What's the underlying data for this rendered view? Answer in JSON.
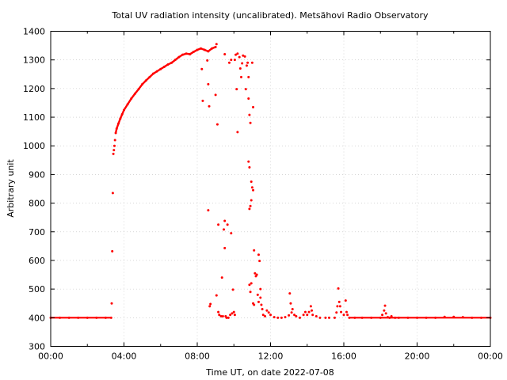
{
  "chart_data": {
    "type": "scatter",
    "title": "Total UV radiation intensity (uncalibrated). Metsähovi Radio Observatory",
    "xlabel": "Time UT, on date 2022-07-08",
    "ylabel": "Arbitrary unit",
    "xlim": [
      "00:00",
      "24:00"
    ],
    "ylim": [
      300,
      1400
    ],
    "x_ticks": [
      "00:00",
      "04:00",
      "08:00",
      "12:00",
      "16:00",
      "20:00",
      "00:00"
    ],
    "y_ticks": [
      300,
      400,
      500,
      600,
      700,
      800,
      900,
      1000,
      1100,
      1200,
      1300,
      1400
    ],
    "grid": true,
    "marker_color": "#ff0000",
    "series": [
      {
        "x_unit": "hours UT",
        "points": [
          [
            0.0,
            400
          ],
          [
            0.5,
            400
          ],
          [
            1.0,
            400
          ],
          [
            1.5,
            400
          ],
          [
            2.0,
            400
          ],
          [
            2.5,
            400
          ],
          [
            3.0,
            400
          ],
          [
            3.3,
            400
          ],
          [
            3.33,
            450
          ],
          [
            3.36,
            632
          ],
          [
            3.39,
            835
          ],
          [
            3.42,
            972
          ],
          [
            3.45,
            985
          ],
          [
            3.48,
            1000
          ],
          [
            3.51,
            1020
          ],
          [
            3.55,
            1045
          ],
          [
            3.6,
            1060
          ],
          [
            3.7,
            1078
          ],
          [
            3.8,
            1095
          ],
          [
            3.9,
            1110
          ],
          [
            4.0,
            1125
          ],
          [
            4.2,
            1145
          ],
          [
            4.4,
            1165
          ],
          [
            4.6,
            1182
          ],
          [
            4.8,
            1198
          ],
          [
            5.0,
            1215
          ],
          [
            5.2,
            1228
          ],
          [
            5.4,
            1240
          ],
          [
            5.6,
            1252
          ],
          [
            5.8,
            1260
          ],
          [
            6.0,
            1268
          ],
          [
            6.2,
            1276
          ],
          [
            6.4,
            1284
          ],
          [
            6.6,
            1290
          ],
          [
            6.8,
            1300
          ],
          [
            7.0,
            1310
          ],
          [
            7.2,
            1318
          ],
          [
            7.4,
            1322
          ],
          [
            7.6,
            1320
          ],
          [
            7.8,
            1328
          ],
          [
            8.0,
            1335
          ],
          [
            8.2,
            1340
          ],
          [
            8.4,
            1335
          ],
          [
            8.6,
            1330
          ],
          [
            8.8,
            1340
          ],
          [
            9.0,
            1345
          ],
          [
            9.05,
            1355
          ],
          [
            8.25,
            1268
          ],
          [
            8.3,
            1157
          ],
          [
            8.55,
            1298
          ],
          [
            8.6,
            1215
          ],
          [
            8.65,
            1138
          ],
          [
            8.6,
            775
          ],
          [
            8.68,
            440
          ],
          [
            8.72,
            448
          ],
          [
            9.0,
            1178
          ],
          [
            9.05,
            478
          ],
          [
            9.1,
            1075
          ],
          [
            9.15,
            725
          ],
          [
            9.15,
            420
          ],
          [
            9.2,
            410
          ],
          [
            9.3,
            405
          ],
          [
            9.35,
            540
          ],
          [
            9.4,
            405
          ],
          [
            9.45,
            708
          ],
          [
            9.5,
            643
          ],
          [
            9.5,
            738
          ],
          [
            9.55,
            405
          ],
          [
            9.6,
            400
          ],
          [
            9.65,
            725
          ],
          [
            9.7,
            400
          ],
          [
            9.75,
            1290
          ],
          [
            9.8,
            410
          ],
          [
            9.85,
            695
          ],
          [
            9.9,
            415
          ],
          [
            9.95,
            498
          ],
          [
            10.0,
            420
          ],
          [
            10.05,
            410
          ],
          [
            9.5,
            1320
          ],
          [
            9.85,
            1300
          ],
          [
            10.05,
            1300
          ],
          [
            10.1,
            1318
          ],
          [
            10.15,
            1198
          ],
          [
            10.2,
            1048
          ],
          [
            10.2,
            1322
          ],
          [
            10.3,
            1310
          ],
          [
            10.35,
            1270
          ],
          [
            10.4,
            1240
          ],
          [
            10.45,
            1288
          ],
          [
            10.5,
            1315
          ],
          [
            10.6,
            1312
          ],
          [
            10.65,
            1198
          ],
          [
            10.7,
            1280
          ],
          [
            10.75,
            1290
          ],
          [
            10.8,
            1240
          ],
          [
            10.8,
            1165
          ],
          [
            10.85,
            1108
          ],
          [
            10.9,
            1080
          ],
          [
            10.8,
            945
          ],
          [
            10.85,
            925
          ],
          [
            10.95,
            875
          ],
          [
            10.95,
            810
          ],
          [
            11.0,
            855
          ],
          [
            11.05,
            845
          ],
          [
            11.05,
            1135
          ],
          [
            11.0,
            1290
          ],
          [
            10.9,
            790
          ],
          [
            10.85,
            780
          ],
          [
            10.85,
            515
          ],
          [
            10.9,
            490
          ],
          [
            10.95,
            520
          ],
          [
            11.05,
            450
          ],
          [
            11.1,
            445
          ],
          [
            11.1,
            635
          ],
          [
            11.15,
            555
          ],
          [
            11.2,
            545
          ],
          [
            11.25,
            550
          ],
          [
            11.3,
            480
          ],
          [
            11.35,
            455
          ],
          [
            11.35,
            620
          ],
          [
            11.4,
            598
          ],
          [
            11.45,
            500
          ],
          [
            11.45,
            470
          ],
          [
            11.5,
            445
          ],
          [
            11.55,
            430
          ],
          [
            11.6,
            410
          ],
          [
            11.7,
            405
          ],
          [
            11.8,
            425
          ],
          [
            11.9,
            418
          ],
          [
            12.0,
            410
          ],
          [
            12.2,
            402
          ],
          [
            12.4,
            400
          ],
          [
            12.6,
            400
          ],
          [
            12.8,
            402
          ],
          [
            13.0,
            408
          ],
          [
            13.05,
            485
          ],
          [
            13.1,
            450
          ],
          [
            13.15,
            418
          ],
          [
            13.2,
            430
          ],
          [
            13.3,
            410
          ],
          [
            13.4,
            405
          ],
          [
            13.6,
            400
          ],
          [
            13.8,
            410
          ],
          [
            13.9,
            420
          ],
          [
            14.0,
            410
          ],
          [
            14.1,
            420
          ],
          [
            14.2,
            440
          ],
          [
            14.25,
            425
          ],
          [
            14.3,
            410
          ],
          [
            14.5,
            405
          ],
          [
            14.7,
            400
          ],
          [
            15.0,
            400
          ],
          [
            15.2,
            400
          ],
          [
            15.5,
            400
          ],
          [
            15.6,
            418
          ],
          [
            15.65,
            440
          ],
          [
            15.7,
            502
          ],
          [
            15.75,
            455
          ],
          [
            15.8,
            440
          ],
          [
            15.85,
            420
          ],
          [
            16.0,
            410
          ],
          [
            16.1,
            460
          ],
          [
            16.15,
            420
          ],
          [
            16.2,
            410
          ],
          [
            16.3,
            400
          ],
          [
            16.6,
            400
          ],
          [
            17.0,
            400
          ],
          [
            17.5,
            400
          ],
          [
            18.0,
            400
          ],
          [
            18.1,
            410
          ],
          [
            18.2,
            425
          ],
          [
            18.25,
            442
          ],
          [
            18.3,
            415
          ],
          [
            18.4,
            402
          ],
          [
            18.5,
            400
          ],
          [
            18.6,
            405
          ],
          [
            18.8,
            400
          ],
          [
            19.0,
            400
          ],
          [
            19.5,
            400
          ],
          [
            20.0,
            400
          ],
          [
            20.5,
            400
          ],
          [
            21.0,
            400
          ],
          [
            21.5,
            403
          ],
          [
            22.0,
            403
          ],
          [
            22.5,
            402
          ],
          [
            23.0,
            400
          ],
          [
            23.5,
            400
          ],
          [
            24.0,
            400
          ]
        ]
      }
    ]
  }
}
